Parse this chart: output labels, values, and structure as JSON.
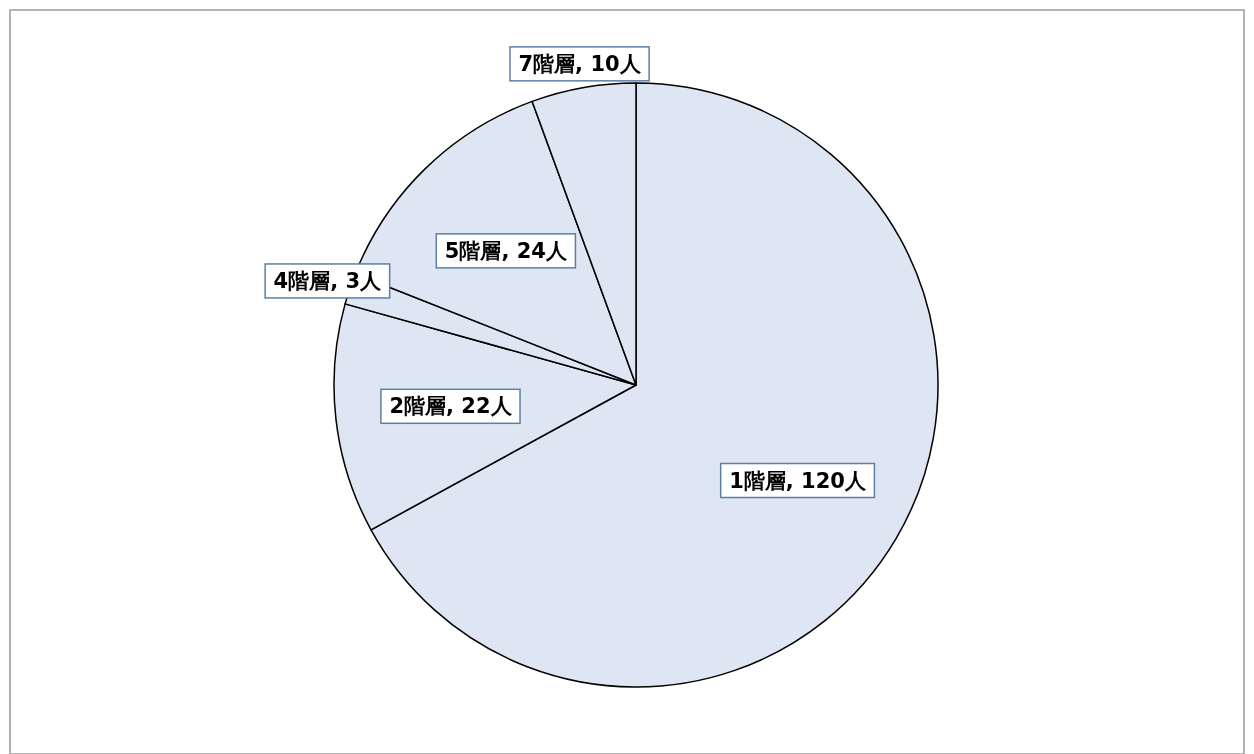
{
  "chart_data": {
    "type": "pie",
    "categories": [
      "1階層",
      "2階層",
      "4階層",
      "5階層",
      "7階層"
    ],
    "values": [
      120,
      22,
      3,
      24,
      10
    ],
    "colors": [
      "#dde6f2",
      "#dde6f2",
      "#dde6f2",
      "#dde6f2",
      "#dde6f2"
    ],
    "value_labels": [
      ", 120人",
      ", 22人",
      ", 3人",
      ", 24人",
      ", 10人"
    ],
    "legend": false
  }
}
